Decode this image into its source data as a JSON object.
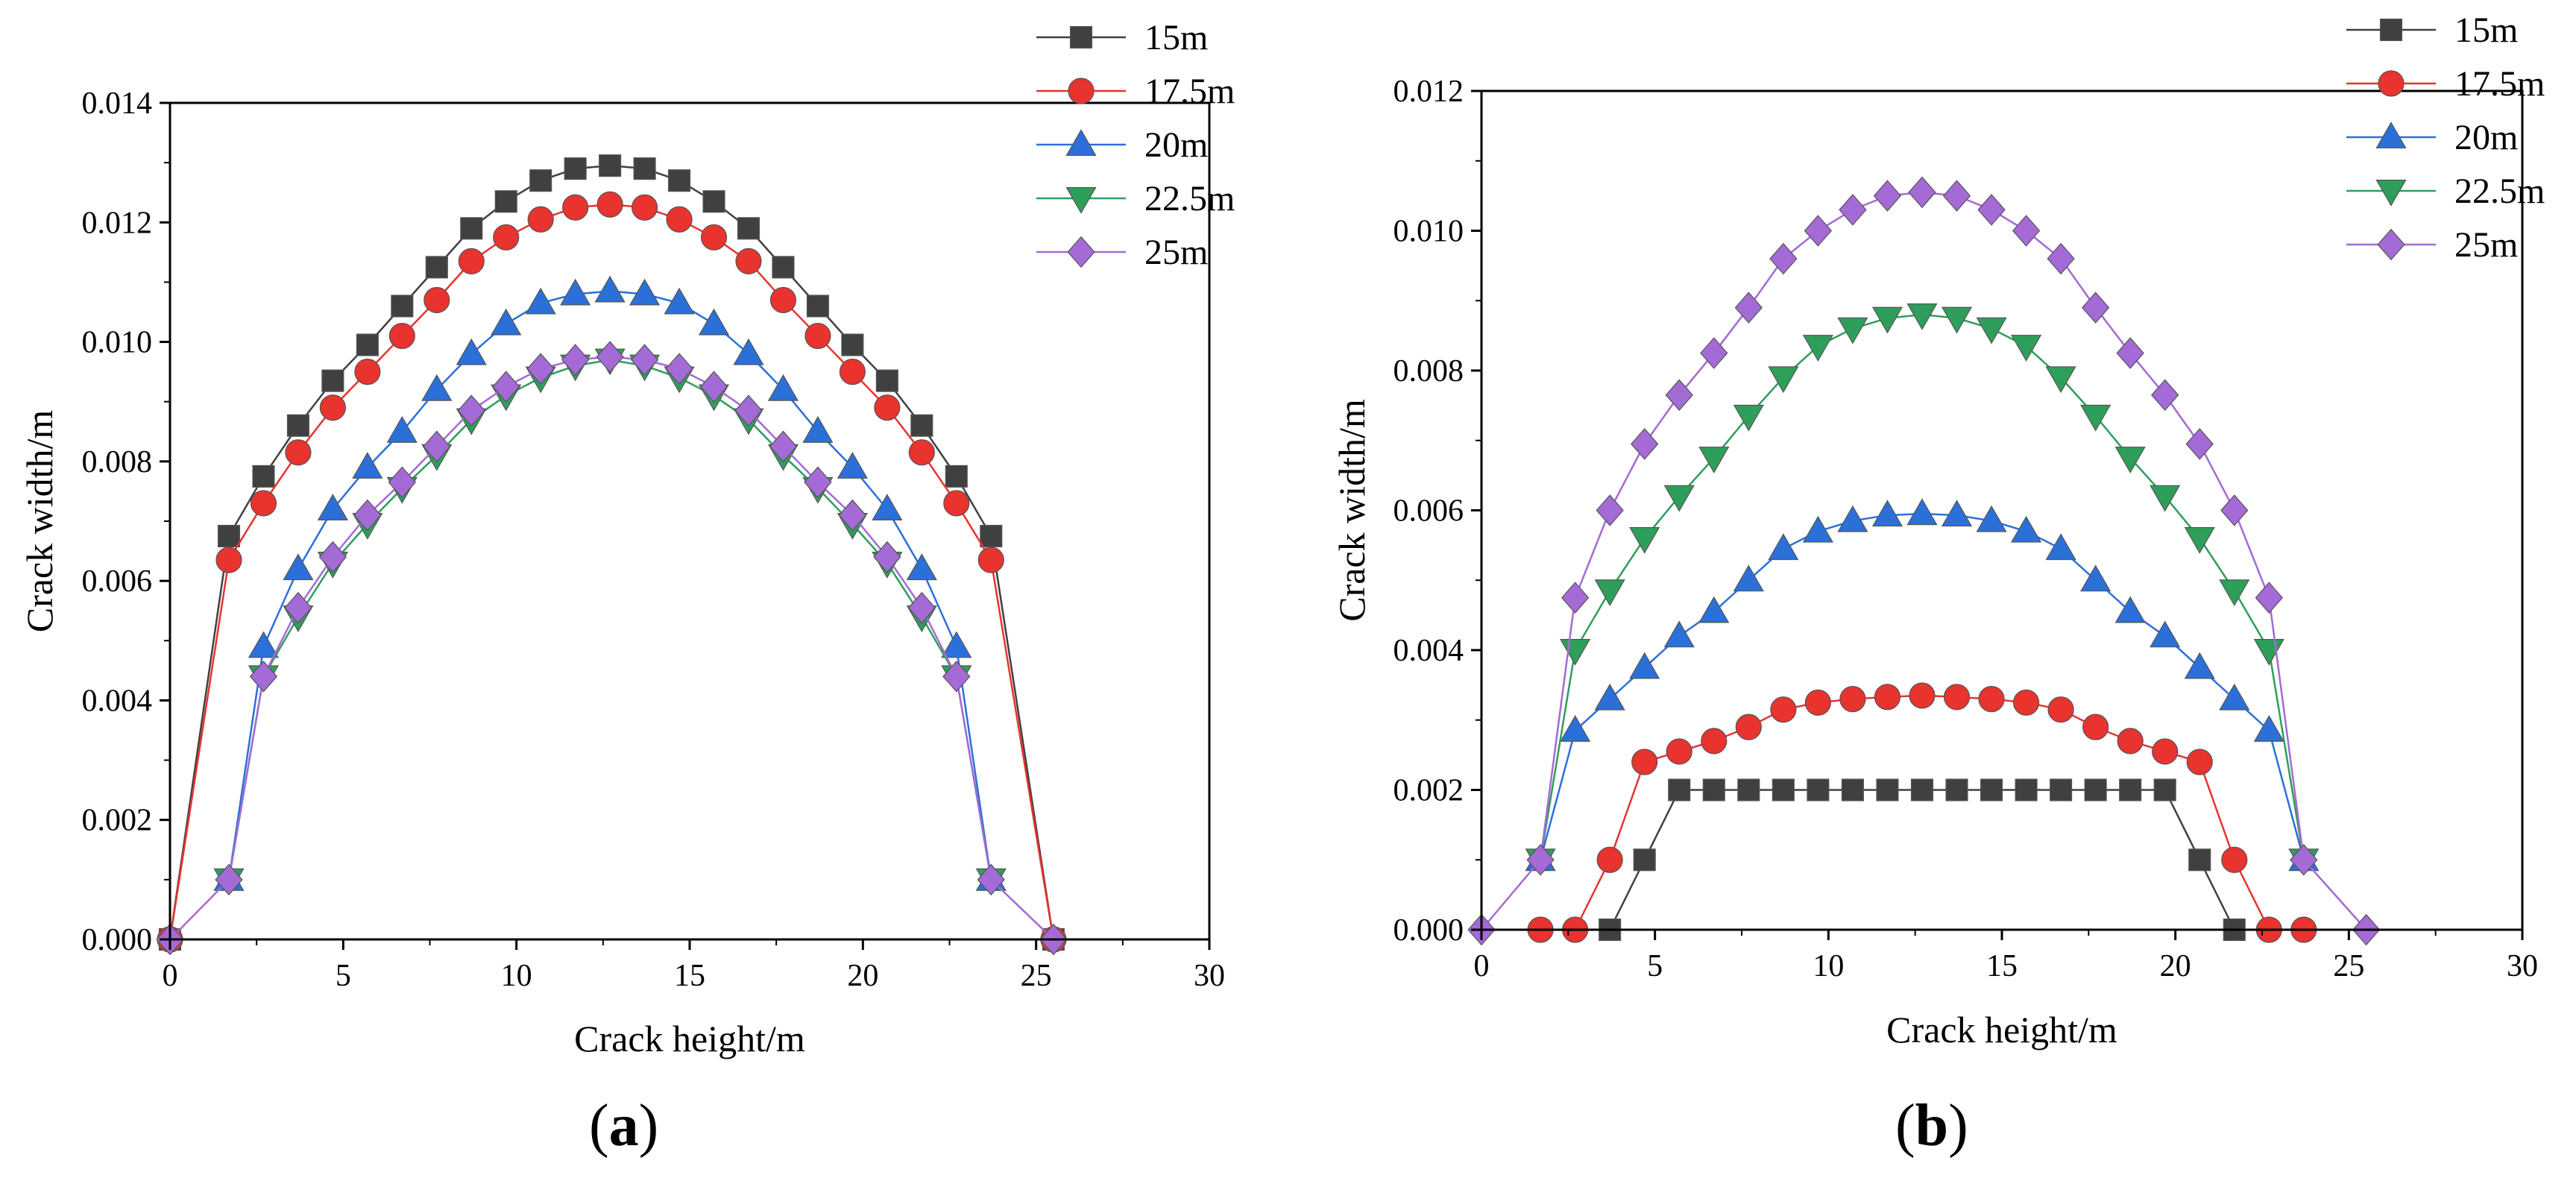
{
  "chart_data": [
    {
      "type": "line",
      "panel_label": "a",
      "xlabel": "Crack height/m",
      "ylabel": "Crack width/m",
      "xlim": [
        0,
        30
      ],
      "ylim": [
        0,
        0.014
      ],
      "xticks": [
        "0",
        "5",
        "10",
        "15",
        "20",
        "25",
        "30"
      ],
      "yticks": [
        "0.000",
        "0.002",
        "0.004",
        "0.006",
        "0.008",
        "0.010",
        "0.012",
        "0.014"
      ],
      "legend_position": "top-right",
      "series": [
        {
          "name": "15m",
          "color": "#404040",
          "marker": "square",
          "x": [
            0,
            1.7,
            2.7,
            3.7,
            4.7,
            5.7,
            6.7,
            7.7,
            8.7,
            9.7,
            10.7,
            11.7,
            12.7,
            13.7,
            14.7,
            15.7,
            16.7,
            17.7,
            18.7,
            19.7,
            20.7,
            21.7,
            22.7,
            23.7,
            25.5
          ],
          "y": [
            0,
            0.00675,
            0.00775,
            0.0086,
            0.00935,
            0.00995,
            0.0106,
            0.01125,
            0.0119,
            0.01235,
            0.0127,
            0.0129,
            0.01295,
            0.0129,
            0.0127,
            0.01235,
            0.0119,
            0.01125,
            0.0106,
            0.00995,
            0.00935,
            0.0086,
            0.00775,
            0.00675,
            0
          ]
        },
        {
          "name": "17.5m",
          "color": "#e8332f",
          "marker": "circle",
          "x": [
            0,
            1.7,
            2.7,
            3.7,
            4.7,
            5.7,
            6.7,
            7.7,
            8.7,
            9.7,
            10.7,
            11.7,
            12.7,
            13.7,
            14.7,
            15.7,
            16.7,
            17.7,
            18.7,
            19.7,
            20.7,
            21.7,
            22.7,
            23.7,
            25.5
          ],
          "y": [
            0,
            0.00635,
            0.0073,
            0.00815,
            0.0089,
            0.0095,
            0.0101,
            0.0107,
            0.01135,
            0.01175,
            0.01205,
            0.01225,
            0.0123,
            0.01225,
            0.01205,
            0.01175,
            0.01135,
            0.0107,
            0.0101,
            0.0095,
            0.0089,
            0.00815,
            0.0073,
            0.00635,
            0
          ]
        },
        {
          "name": "20m",
          "color": "#2b70d8",
          "marker": "triangle-up",
          "x": [
            1.7,
            2.7,
            3.7,
            4.7,
            5.7,
            6.7,
            7.7,
            8.7,
            9.7,
            10.7,
            11.7,
            12.7,
            13.7,
            14.7,
            15.7,
            16.7,
            17.7,
            18.7,
            19.7,
            20.7,
            21.7,
            22.7,
            23.7
          ],
          "y": [
            0.001,
            0.0049,
            0.0062,
            0.0072,
            0.0079,
            0.0085,
            0.0092,
            0.0098,
            0.0103,
            0.01065,
            0.0108,
            0.01085,
            0.0108,
            0.01065,
            0.0103,
            0.0098,
            0.0092,
            0.0085,
            0.0079,
            0.0072,
            0.0062,
            0.0049,
            0.001
          ]
        },
        {
          "name": "22.5m",
          "color": "#2e9e5b",
          "marker": "triangle-down",
          "x": [
            1.7,
            2.7,
            3.7,
            4.7,
            5.7,
            6.7,
            7.7,
            8.7,
            9.7,
            10.7,
            11.7,
            12.7,
            13.7,
            14.7,
            15.7,
            16.7,
            17.7,
            18.7,
            19.7,
            20.7,
            21.7,
            22.7,
            23.7
          ],
          "y": [
            0.001,
            0.0044,
            0.0054,
            0.0063,
            0.00695,
            0.00755,
            0.0081,
            0.0087,
            0.0091,
            0.0094,
            0.0096,
            0.0097,
            0.0096,
            0.0094,
            0.0091,
            0.0087,
            0.0081,
            0.00755,
            0.00695,
            0.0063,
            0.0054,
            0.0044,
            0.001
          ]
        },
        {
          "name": "25m",
          "color": "#a46ad6",
          "marker": "diamond",
          "x": [
            0,
            1.7,
            2.7,
            3.7,
            4.7,
            5.7,
            6.7,
            7.7,
            8.7,
            9.7,
            10.7,
            11.7,
            12.7,
            13.7,
            14.7,
            15.7,
            16.7,
            17.7,
            18.7,
            19.7,
            20.7,
            21.7,
            22.7,
            23.7,
            25.5
          ],
          "y": [
            0,
            0.001,
            0.0044,
            0.00555,
            0.0064,
            0.0071,
            0.00765,
            0.00825,
            0.00885,
            0.00925,
            0.00955,
            0.0097,
            0.00975,
            0.0097,
            0.00955,
            0.00925,
            0.00885,
            0.00825,
            0.00765,
            0.0071,
            0.0064,
            0.00555,
            0.0044,
            0.001,
            0
          ]
        }
      ]
    },
    {
      "type": "line",
      "panel_label": "b",
      "xlabel": "Crack height/m",
      "ylabel": "Crack width/m",
      "xlim": [
        0,
        30
      ],
      "ylim": [
        0,
        0.012
      ],
      "xticks": [
        "0",
        "5",
        "10",
        "15",
        "20",
        "25",
        "30"
      ],
      "yticks": [
        "0.000",
        "0.002",
        "0.004",
        "0.006",
        "0.008",
        "0.010",
        "0.012"
      ],
      "legend_position": "top-right",
      "series": [
        {
          "name": "15m",
          "color": "#404040",
          "marker": "square",
          "x": [
            3.7,
            4.7,
            5.7,
            6.7,
            7.7,
            8.7,
            9.7,
            10.7,
            11.7,
            12.7,
            13.7,
            14.7,
            15.7,
            16.7,
            17.7,
            18.7,
            19.7,
            20.7,
            21.7
          ],
          "y": [
            0,
            0.001,
            0.002,
            0.002,
            0.002,
            0.002,
            0.002,
            0.002,
            0.002,
            0.002,
            0.002,
            0.002,
            0.002,
            0.002,
            0.002,
            0.002,
            0.002,
            0.001,
            0
          ]
        },
        {
          "name": "17.5m",
          "color": "#e8332f",
          "marker": "circle",
          "x": [
            1.7,
            2.7,
            3.7,
            4.7,
            5.7,
            6.7,
            7.7,
            8.7,
            9.7,
            10.7,
            11.7,
            12.7,
            13.7,
            14.7,
            15.7,
            16.7,
            17.7,
            18.7,
            19.7,
            20.7,
            21.7,
            22.7,
            23.7
          ],
          "y": [
            0,
            0,
            0.001,
            0.0024,
            0.00255,
            0.0027,
            0.0029,
            0.00315,
            0.00325,
            0.0033,
            0.00333,
            0.00335,
            0.00333,
            0.0033,
            0.00325,
            0.00315,
            0.0029,
            0.0027,
            0.00255,
            0.0024,
            0.001,
            0,
            0
          ]
        },
        {
          "name": "20m",
          "color": "#2b70d8",
          "marker": "triangle-up",
          "x": [
            1.7,
            2.7,
            3.7,
            4.7,
            5.7,
            6.7,
            7.7,
            8.7,
            9.7,
            10.7,
            11.7,
            12.7,
            13.7,
            14.7,
            15.7,
            16.7,
            17.7,
            18.7,
            19.7,
            20.7,
            21.7,
            22.7,
            23.7
          ],
          "y": [
            0.001,
            0.00285,
            0.0033,
            0.00375,
            0.0042,
            0.00455,
            0.005,
            0.00545,
            0.0057,
            0.00585,
            0.00593,
            0.00595,
            0.00593,
            0.00585,
            0.0057,
            0.00545,
            0.005,
            0.00455,
            0.0042,
            0.00375,
            0.0033,
            0.00285,
            0.001
          ]
        },
        {
          "name": "22.5m",
          "color": "#2e9e5b",
          "marker": "triangle-down",
          "x": [
            1.7,
            2.7,
            3.7,
            4.7,
            5.7,
            6.7,
            7.7,
            8.7,
            9.7,
            10.7,
            11.7,
            12.7,
            13.7,
            14.7,
            15.7,
            16.7,
            17.7,
            18.7,
            19.7,
            20.7,
            21.7,
            22.7,
            23.7
          ],
          "y": [
            0.001,
            0.004,
            0.00485,
            0.0056,
            0.0062,
            0.00675,
            0.00735,
            0.0079,
            0.00835,
            0.0086,
            0.00875,
            0.0088,
            0.00875,
            0.0086,
            0.00835,
            0.0079,
            0.00735,
            0.00675,
            0.0062,
            0.0056,
            0.00485,
            0.004,
            0.001
          ]
        },
        {
          "name": "25m",
          "color": "#a46ad6",
          "marker": "diamond",
          "x": [
            0,
            1.7,
            2.7,
            3.7,
            4.7,
            5.7,
            6.7,
            7.7,
            8.7,
            9.7,
            10.7,
            11.7,
            12.7,
            13.7,
            14.7,
            15.7,
            16.7,
            17.7,
            18.7,
            19.7,
            20.7,
            21.7,
            22.7,
            23.7,
            25.5
          ],
          "y": [
            0,
            0.001,
            0.00475,
            0.006,
            0.00695,
            0.00765,
            0.00825,
            0.0089,
            0.0096,
            0.01,
            0.0103,
            0.0105,
            0.01055,
            0.0105,
            0.0103,
            0.01,
            0.0096,
            0.0089,
            0.00825,
            0.00765,
            0.00695,
            0.006,
            0.00475,
            0.001,
            0
          ]
        }
      ]
    }
  ]
}
